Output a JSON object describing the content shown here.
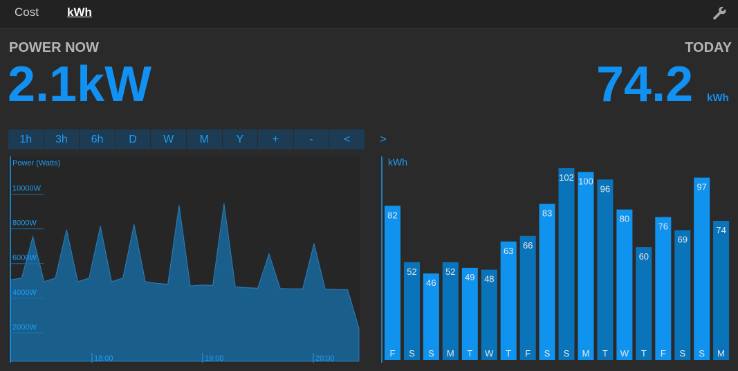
{
  "tabs": [
    {
      "label": "Cost",
      "active": false
    },
    {
      "label": "kWh",
      "active": true
    }
  ],
  "power_now": {
    "label": "POWER NOW",
    "value": "2.1kW"
  },
  "today": {
    "label": "TODAY",
    "value": "74.2",
    "unit": "kWh"
  },
  "range_buttons": [
    "1h",
    "3h",
    "6h",
    "D",
    "W",
    "M",
    "Y",
    "+",
    "-",
    "<"
  ],
  "next_button": ">",
  "icons": {
    "settings": "wrench-icon"
  },
  "colors": {
    "accent": "#1192f2",
    "bar_light": "#0f93ef",
    "bar_dark": "#0a74bb",
    "area": "#1a5f8c"
  },
  "chart_data": [
    {
      "type": "area",
      "ylabel": "Power (Watts)",
      "y_ticks": [
        "2000W",
        "4000W",
        "6000W",
        "8000W",
        "10000W"
      ],
      "x_ticks": [
        "18:00",
        "19:00",
        "20:00"
      ],
      "ylim": [
        0,
        11500
      ],
      "series": [
        {
          "values_w": [
            4700,
            4800,
            7200,
            4600,
            4800,
            7600,
            4600,
            4800,
            7800,
            4600,
            4800,
            7900,
            4600,
            4500,
            4450,
            9000,
            4350,
            4400,
            4380,
            9100,
            4300,
            4250,
            4220,
            6200,
            4200,
            4180,
            4180,
            6800,
            4160,
            4140,
            4130,
            1900
          ]
        }
      ]
    },
    {
      "type": "bar",
      "ylabel": "kWh",
      "categories": [
        "F",
        "S",
        "S",
        "M",
        "T",
        "W",
        "T",
        "F",
        "S",
        "S",
        "M",
        "T",
        "W",
        "T",
        "F",
        "S",
        "S",
        "M"
      ],
      "values": [
        82,
        52,
        46,
        52,
        49,
        48,
        63,
        66,
        83,
        102,
        100,
        96,
        80,
        60,
        76,
        69,
        97,
        74
      ],
      "ylim": [
        0,
        102
      ]
    }
  ]
}
